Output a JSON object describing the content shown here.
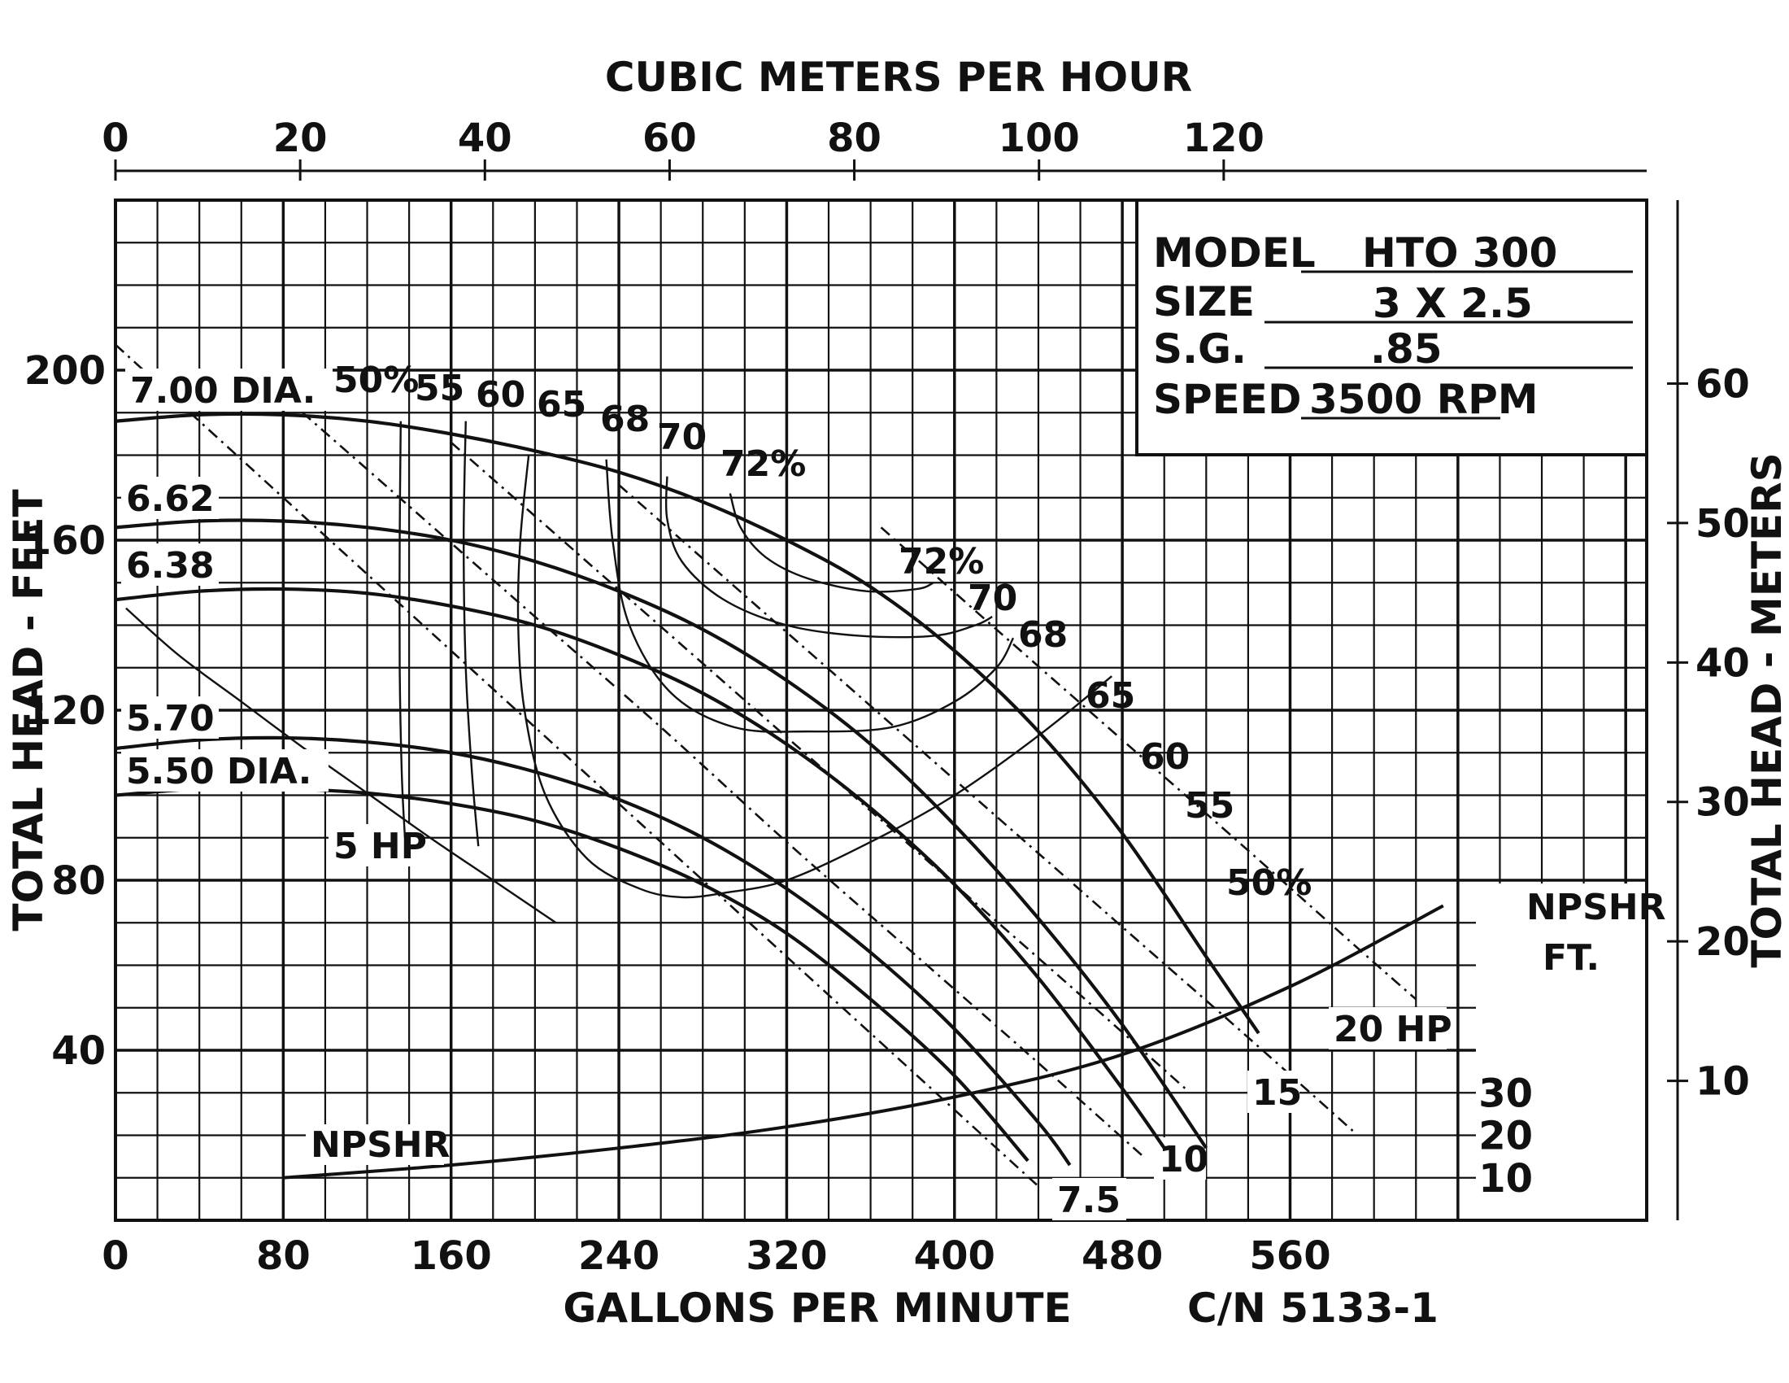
{
  "chart_data": {
    "type": "line",
    "title": "",
    "xlabel": "GALLONS PER MINUTE",
    "ylabel": "TOTAL HEAD - FEET",
    "x2label": "CUBIC METERS PER HOUR",
    "y2label": "TOTAL HEAD - METERS",
    "xlim": [
      0,
      730
    ],
    "ylim": [
      0,
      240
    ],
    "x_ticks": [
      "0",
      "80",
      "160",
      "240",
      "320",
      "400",
      "480",
      "560"
    ],
    "y_ticks": [
      "40",
      "80",
      "120",
      "160",
      "200"
    ],
    "x2_ticks": [
      "0",
      "20",
      "40",
      "60",
      "80",
      "100",
      "120"
    ],
    "y2_ticks": [
      "10",
      "20",
      "30",
      "40",
      "50",
      "60"
    ],
    "npshr_ticks": [
      "10",
      "20",
      "30"
    ],
    "npshr_axis_label": [
      "NPSHR",
      "FT."
    ],
    "grid": true,
    "info_box": {
      "model_label": "MODEL",
      "model_value": "HTO 300",
      "size_label": "SIZE",
      "size_value": "3 X 2.5",
      "sg_label": "S.G.",
      "sg_value": ".85",
      "speed_label": "SPEED",
      "speed_value": "3500 RPM"
    },
    "catalog_number": "C/N 5133-1",
    "head_curves": [
      {
        "name": "7.00 DIA.",
        "x": [
          0,
          40,
          80,
          120,
          160,
          200,
          240,
          280,
          320,
          360,
          400,
          440,
          480,
          520,
          545
        ],
        "y": [
          188,
          189.5,
          189.5,
          188,
          185,
          181,
          176,
          169,
          160,
          149,
          134,
          115,
          91,
          62,
          44
        ]
      },
      {
        "name": "6.62",
        "x": [
          0,
          40,
          80,
          120,
          160,
          200,
          240,
          280,
          320,
          360,
          400,
          440,
          480,
          520
        ],
        "y": [
          163,
          164.5,
          164.5,
          163,
          160,
          155,
          148,
          139,
          127,
          112,
          93,
          71,
          46,
          17
        ]
      },
      {
        "name": "6.38",
        "x": [
          0,
          40,
          80,
          120,
          160,
          200,
          240,
          280,
          320,
          360,
          400,
          440,
          480,
          500
        ],
        "y": [
          146,
          148,
          148.5,
          147.5,
          144.5,
          140,
          133,
          124,
          112,
          97,
          79,
          57,
          31,
          17
        ]
      },
      {
        "name": "5.70",
        "x": [
          0,
          40,
          80,
          120,
          160,
          200,
          240,
          280,
          320,
          360,
          400,
          440,
          455
        ],
        "y": [
          111,
          113,
          113.5,
          112.5,
          110,
          105.5,
          99,
          90,
          78,
          63,
          45,
          23,
          13
        ]
      },
      {
        "name": "5.50 DIA.",
        "x": [
          0,
          40,
          80,
          120,
          160,
          200,
          240,
          280,
          320,
          360,
          400,
          435
        ],
        "y": [
          100,
          101.5,
          101.5,
          100.5,
          98,
          94,
          87.5,
          79,
          67.5,
          52,
          34,
          14
        ]
      }
    ],
    "efficiency_curves": [
      {
        "name": "50%",
        "x": [
          5,
          30,
          60,
          90,
          120,
          150,
          180,
          210
        ],
        "y": [
          144,
          133,
          122,
          111,
          100.5,
          90,
          80,
          70
        ]
      },
      {
        "name": "55",
        "x": [
          136,
          135.5,
          135.5,
          136.5,
          138
        ],
        "y": [
          188,
          160,
          130,
          105,
          90
        ]
      },
      {
        "name": "60",
        "x": [
          167,
          166,
          167,
          170,
          173
        ],
        "y": [
          188,
          160,
          130,
          105,
          88
        ]
      },
      {
        "name": "65",
        "x": [
          197,
          193,
          192,
          195,
          205,
          225,
          250,
          270,
          290,
          320,
          360,
          400,
          440,
          475
        ],
        "y": [
          180,
          160,
          140,
          120,
          100,
          85,
          78,
          76,
          77,
          80,
          89,
          100,
          114,
          128
        ]
      },
      {
        "name": "68",
        "x": [
          234,
          237,
          245,
          265,
          295,
          330,
          370,
          400,
          420,
          428
        ],
        "y": [
          179,
          160,
          140,
          124,
          116,
          115,
          116,
          122,
          130,
          137
        ]
      },
      {
        "name": "70",
        "x": [
          263,
          263,
          270,
          290,
          320,
          355,
          390,
          410,
          418
        ],
        "y": [
          175,
          165,
          155,
          146,
          140,
          137.5,
          137.5,
          140,
          142
        ]
      },
      {
        "name": "72%",
        "x": [
          293,
          298,
          310,
          330,
          358,
          382,
          390
        ],
        "y": [
          171,
          163,
          156,
          151,
          148,
          148.5,
          150
        ]
      }
    ],
    "horsepower_curves": [
      {
        "name": "5 HP",
        "x": [
          0,
          60,
          120,
          180,
          240,
          300,
          360,
          420,
          440
        ],
        "y": [
          206,
          179,
          152,
          125,
          98,
          71,
          44,
          17,
          8
        ]
      },
      {
        "name": "7.5",
        "x": [
          80,
          140,
          200,
          260,
          320,
          380,
          440,
          490
        ],
        "y": [
          194,
          168,
          142,
          116,
          89,
          63,
          37,
          15
        ]
      },
      {
        "name": "10",
        "x": [
          160,
          220,
          280,
          340,
          400,
          460,
          510
        ],
        "y": [
          183,
          157,
          131,
          105,
          79,
          53,
          31
        ]
      },
      {
        "name": "15",
        "x": [
          240,
          300,
          360,
          420,
          480,
          540,
          590
        ],
        "y": [
          173,
          147,
          121,
          95,
          69,
          43,
          21
        ]
      },
      {
        "name": "20 HP",
        "x": [
          365,
          420,
          480,
          540,
          590,
          620
        ],
        "y": [
          163,
          139,
          113,
          87,
          65,
          52
        ]
      }
    ],
    "npshr_curve": {
      "name": "NPSHR",
      "x": [
        80,
        160,
        240,
        320,
        400,
        480,
        560,
        633
      ],
      "y": [
        10,
        13,
        17,
        22,
        29,
        39,
        55,
        74
      ]
    }
  }
}
